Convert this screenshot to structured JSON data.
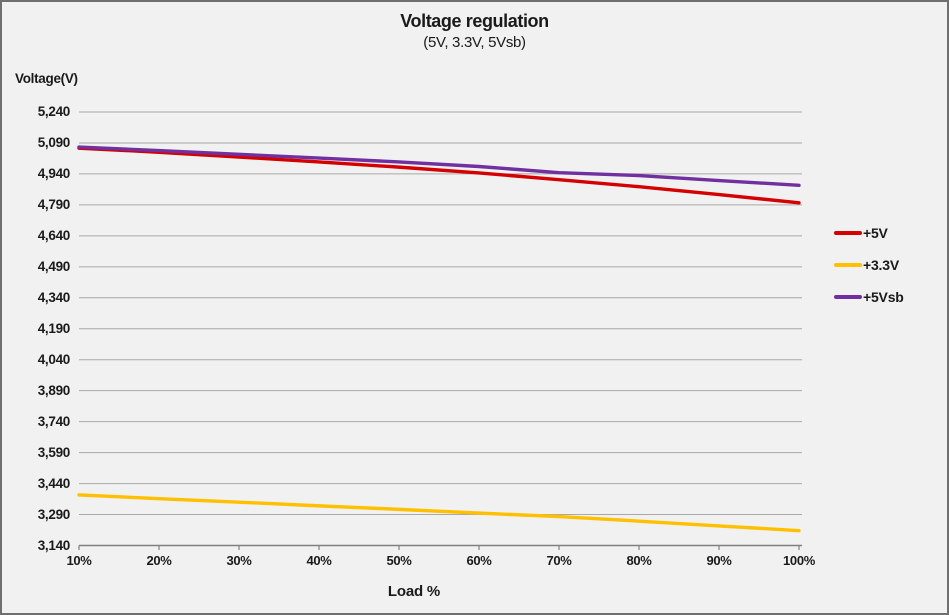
{
  "frame": {
    "background": "#F1F1F1",
    "border_color": "#6F6F6F",
    "gridline_color": "#A8A8A8",
    "axis_color": "#808080",
    "text_color": "#1A1A1A"
  },
  "header": {
    "title": "Voltage regulation",
    "subtitle": "(5V, 3.3V, 5Vsb)"
  },
  "axes": {
    "y_label": "Voltage(V)",
    "x_label": "Load %"
  },
  "legend": {
    "items": [
      {
        "label": "+5V",
        "color": "#D40000"
      },
      {
        "label": "+3.3V",
        "color": "#FFC000"
      },
      {
        "label": "+5Vsb",
        "color": "#7030A0"
      }
    ]
  },
  "chart_data": {
    "type": "line",
    "title": "Voltage regulation",
    "subtitle": "(5V, 3.3V, 5Vsb)",
    "xlabel": "Load %",
    "ylabel": "Voltage(V)",
    "categories": [
      "10%",
      "20%",
      "30%",
      "40%",
      "50%",
      "60%",
      "70%",
      "80%",
      "90%",
      "100%"
    ],
    "ylim": [
      3140,
      5240
    ],
    "y_tick_step": 150,
    "y_ticks": [
      5240,
      5090,
      4940,
      4790,
      4640,
      4490,
      4340,
      4190,
      4040,
      3890,
      3740,
      3590,
      3440,
      3290,
      3140
    ],
    "grid": "horizontal-only",
    "legend_position": "right",
    "series": [
      {
        "name": "+5V",
        "color": "#D40000",
        "values": [
          5065,
          5045,
          5022,
          4998,
          4973,
          4945,
          4912,
          4878,
          4840,
          4800
        ]
      },
      {
        "name": "+3.3V",
        "color": "#FFC000",
        "values": [
          3385,
          3367,
          3350,
          3332,
          3315,
          3297,
          3280,
          3258,
          3235,
          3212
        ]
      },
      {
        "name": "+5Vsb",
        "color": "#7030A0",
        "values": [
          5070,
          5053,
          5035,
          5017,
          4998,
          4976,
          4946,
          4932,
          4908,
          4885
        ]
      }
    ]
  }
}
